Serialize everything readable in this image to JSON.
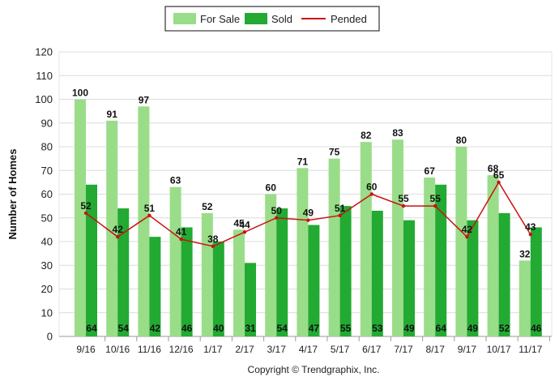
{
  "chart_data": {
    "type": "bar",
    "title": "",
    "xlabel": "",
    "ylabel": "Number of Homes",
    "ylim": [
      0,
      120
    ],
    "yticks": [
      0,
      10,
      20,
      30,
      40,
      50,
      60,
      70,
      80,
      90,
      100,
      110,
      120
    ],
    "categories": [
      "9/16",
      "10/16",
      "11/16",
      "12/16",
      "1/17",
      "2/17",
      "3/17",
      "4/17",
      "5/17",
      "6/17",
      "7/17",
      "8/17",
      "9/17",
      "10/17",
      "11/17"
    ],
    "series": [
      {
        "name": "For Sale",
        "kind": "bar",
        "color": "#99dd88",
        "values": [
          100,
          91,
          97,
          63,
          52,
          45,
          60,
          71,
          75,
          82,
          83,
          67,
          80,
          68,
          32
        ]
      },
      {
        "name": "Sold",
        "kind": "bar",
        "color": "#22aa33",
        "values": [
          64,
          54,
          42,
          46,
          40,
          31,
          54,
          47,
          55,
          53,
          49,
          64,
          49,
          52,
          46
        ]
      },
      {
        "name": "Pended",
        "kind": "line",
        "color": "#cc1111",
        "values": [
          52,
          42,
          51,
          41,
          38,
          44,
          50,
          49,
          51,
          60,
          55,
          55,
          42,
          65,
          43
        ]
      }
    ],
    "legend": [
      "For Sale",
      "Sold",
      "Pended"
    ],
    "legend_position": "top-center",
    "grid": true,
    "copyright": "Copyright © Trendgraphix, Inc."
  }
}
